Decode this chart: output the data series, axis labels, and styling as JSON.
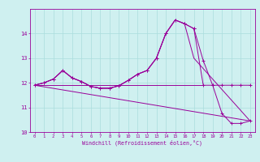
{
  "xlabel": "Windchill (Refroidissement éolien,°C)",
  "bg_color": "#cff0f0",
  "line_color": "#990099",
  "grid_color": "#b0d8d8",
  "xmin": 0,
  "xmax": 23,
  "ymin": 10,
  "ymax": 15.0,
  "yticks": [
    10,
    11,
    12,
    13,
    14
  ],
  "xticks": [
    0,
    1,
    2,
    3,
    4,
    5,
    6,
    7,
    8,
    9,
    10,
    11,
    12,
    13,
    14,
    15,
    16,
    17,
    18,
    19,
    20,
    21,
    22,
    23
  ],
  "series1_x": [
    0,
    1,
    2,
    3,
    4,
    5,
    6,
    7,
    8,
    9,
    10,
    11,
    12,
    13,
    14,
    15,
    16,
    17,
    18,
    19,
    20,
    21,
    22,
    23
  ],
  "series1_y": [
    11.9,
    12.0,
    12.15,
    12.5,
    12.2,
    12.05,
    11.85,
    11.78,
    11.78,
    11.88,
    12.1,
    12.35,
    12.5,
    13.0,
    14.0,
    14.55,
    14.4,
    14.2,
    11.9,
    11.9,
    11.9,
    11.9,
    11.9,
    11.9
  ],
  "series2_x": [
    0,
    1,
    2,
    3,
    4,
    5,
    6,
    7,
    8,
    9,
    10,
    11,
    12,
    13,
    14,
    15,
    16,
    17,
    18,
    19,
    20,
    21,
    22,
    23
  ],
  "series2_y": [
    11.9,
    12.0,
    12.15,
    12.5,
    12.2,
    12.05,
    11.85,
    11.78,
    11.78,
    11.88,
    12.1,
    12.35,
    12.5,
    13.0,
    14.0,
    14.55,
    14.4,
    14.2,
    12.9,
    11.9,
    10.75,
    10.35,
    10.35,
    10.45
  ],
  "series3_x": [
    0,
    1,
    2,
    3,
    4,
    5,
    6,
    7,
    8,
    9,
    10,
    11,
    12,
    13,
    14,
    15,
    16,
    17,
    23
  ],
  "series3_y": [
    11.9,
    12.0,
    12.15,
    12.5,
    12.2,
    12.05,
    11.85,
    11.78,
    11.78,
    11.88,
    12.1,
    12.35,
    12.5,
    13.0,
    14.0,
    14.55,
    14.4,
    13.0,
    10.45
  ],
  "series4_x": [
    0,
    23
  ],
  "series4_y": [
    11.9,
    10.45
  ],
  "series5_x": [
    0,
    18
  ],
  "series5_y": [
    11.9,
    11.9
  ]
}
